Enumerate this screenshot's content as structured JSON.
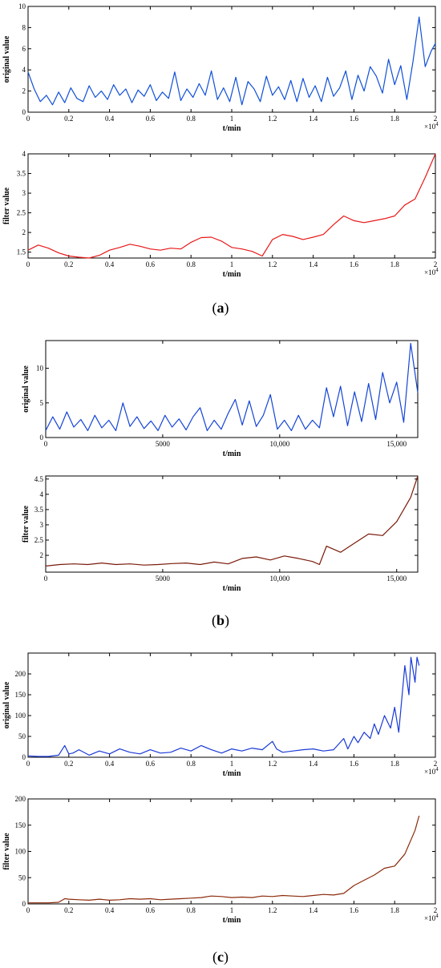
{
  "figure_captions": [
    {
      "open": "(",
      "letter": "a",
      "close": ")"
    },
    {
      "open": "(",
      "letter": "b",
      "close": ")"
    },
    {
      "open": "(",
      "letter": "c",
      "close": ")"
    }
  ],
  "chart_data": [
    {
      "type": "line",
      "panel": "a",
      "color": "#1050d8",
      "xlabel": "t/min",
      "ylabel": "original value",
      "xlim": [
        0,
        2
      ],
      "ylim": [
        0,
        10
      ],
      "xticks": [
        "0",
        "0.2",
        "0.4",
        "0.6",
        "0.8",
        "1",
        "1.2",
        "1.4",
        "1.6",
        "1.8",
        "2"
      ],
      "yticks": [
        "0",
        "2",
        "4",
        "6",
        "8",
        "10"
      ],
      "x_multiplier": {
        "base": "×10",
        "exp": "4"
      },
      "series": [
        {
          "x": [
            0,
            0.03,
            0.06,
            0.09,
            0.12,
            0.15,
            0.18,
            0.21,
            0.24,
            0.27,
            0.3,
            0.33,
            0.36,
            0.39,
            0.42,
            0.45,
            0.48,
            0.51,
            0.54,
            0.57,
            0.6,
            0.63,
            0.66,
            0.69,
            0.72,
            0.75,
            0.78,
            0.81,
            0.84,
            0.87,
            0.9,
            0.93,
            0.96,
            0.99,
            1.02,
            1.05,
            1.08,
            1.11,
            1.14,
            1.17,
            1.2,
            1.23,
            1.26,
            1.29,
            1.32,
            1.35,
            1.38,
            1.41,
            1.44,
            1.47,
            1.5,
            1.53,
            1.56,
            1.59,
            1.62,
            1.65,
            1.68,
            1.71,
            1.74,
            1.77,
            1.8,
            1.83,
            1.86,
            1.89,
            1.92,
            1.95,
            1.98,
            2.0
          ],
          "y": [
            3.8,
            2.2,
            1.0,
            1.6,
            0.7,
            1.9,
            0.9,
            2.3,
            1.3,
            1.0,
            2.5,
            1.4,
            2.0,
            1.2,
            2.6,
            1.6,
            2.2,
            0.9,
            2.1,
            1.5,
            2.6,
            1.1,
            1.9,
            1.3,
            3.8,
            1.1,
            2.2,
            1.4,
            2.7,
            1.6,
            3.9,
            1.2,
            2.3,
            1.0,
            3.3,
            0.7,
            2.9,
            2.2,
            1.0,
            3.4,
            1.6,
            2.4,
            1.2,
            3.0,
            1.0,
            3.2,
            1.4,
            2.5,
            1.0,
            3.3,
            1.5,
            2.3,
            3.9,
            1.2,
            3.5,
            2.0,
            4.3,
            3.4,
            1.8,
            5.0,
            2.6,
            4.4,
            1.2,
            4.8,
            9.0,
            4.3,
            5.8,
            6.5
          ]
        }
      ]
    },
    {
      "type": "line",
      "panel": "a",
      "color": "#e81818",
      "xlabel": "t/min",
      "ylabel": "filter value",
      "xlim": [
        0,
        2
      ],
      "ylim": [
        1.35,
        4
      ],
      "xticks": [
        "0",
        "0.2",
        "0.4",
        "0.6",
        "0.8",
        "1",
        "1.2",
        "1.4",
        "1.6",
        "1.8",
        "2"
      ],
      "yticks": [
        "1.5",
        "2",
        "2.5",
        "3",
        "3.5",
        "4"
      ],
      "x_multiplier": {
        "base": "×10",
        "exp": "4"
      },
      "series": [
        {
          "x": [
            0,
            0.05,
            0.1,
            0.15,
            0.2,
            0.25,
            0.3,
            0.35,
            0.4,
            0.45,
            0.5,
            0.55,
            0.6,
            0.65,
            0.7,
            0.75,
            0.8,
            0.85,
            0.9,
            0.95,
            1.0,
            1.05,
            1.1,
            1.15,
            1.2,
            1.25,
            1.3,
            1.35,
            1.4,
            1.45,
            1.5,
            1.55,
            1.6,
            1.65,
            1.7,
            1.75,
            1.8,
            1.85,
            1.9,
            1.95,
            2.0
          ],
          "y": [
            1.55,
            1.68,
            1.6,
            1.48,
            1.4,
            1.37,
            1.35,
            1.42,
            1.55,
            1.62,
            1.7,
            1.65,
            1.58,
            1.55,
            1.6,
            1.58,
            1.75,
            1.87,
            1.88,
            1.78,
            1.62,
            1.58,
            1.52,
            1.4,
            1.82,
            1.95,
            1.9,
            1.82,
            1.88,
            1.95,
            2.2,
            2.42,
            2.3,
            2.25,
            2.3,
            2.35,
            2.42,
            2.7,
            2.85,
            3.4,
            4.0
          ]
        }
      ]
    },
    {
      "type": "line",
      "panel": "b",
      "color": "#1545d6",
      "xlabel": "t/min",
      "ylabel": "original value",
      "xlim": [
        0,
        15900
      ],
      "ylim": [
        0,
        14
      ],
      "xticks": [
        {
          "v": 0,
          "label": "0"
        },
        {
          "v": 5000,
          "label": "5000"
        },
        {
          "v": 10000,
          "label": "10,000"
        },
        {
          "v": 15000,
          "label": "15,000"
        }
      ],
      "yticks": [
        {
          "v": 0,
          "label": "0"
        },
        {
          "v": 5,
          "label": "5"
        },
        {
          "v": 10,
          "label": "10"
        }
      ],
      "series": [
        {
          "x": [
            0,
            300,
            600,
            900,
            1200,
            1500,
            1800,
            2100,
            2400,
            2700,
            3000,
            3300,
            3600,
            3900,
            4200,
            4500,
            4800,
            5100,
            5400,
            5700,
            6000,
            6300,
            6600,
            6900,
            7200,
            7500,
            7800,
            8100,
            8400,
            8700,
            9000,
            9300,
            9600,
            9900,
            10200,
            10500,
            10800,
            11100,
            11400,
            11700,
            12000,
            12300,
            12600,
            12900,
            13200,
            13500,
            13800,
            14100,
            14400,
            14700,
            15000,
            15300,
            15600,
            15900
          ],
          "y": [
            1.0,
            3.0,
            1.2,
            3.7,
            1.5,
            2.6,
            1.0,
            3.2,
            1.4,
            2.5,
            1.0,
            5.0,
            1.6,
            3.0,
            1.3,
            2.4,
            1.0,
            3.2,
            1.5,
            2.7,
            1.1,
            3.0,
            4.3,
            1.0,
            2.5,
            1.2,
            3.5,
            5.5,
            1.8,
            5.3,
            1.6,
            3.2,
            6.2,
            1.2,
            2.5,
            1.0,
            3.2,
            1.2,
            2.5,
            1.4,
            7.2,
            3.0,
            7.4,
            1.7,
            6.6,
            2.3,
            7.8,
            2.6,
            9.4,
            5.0,
            8.0,
            2.2,
            13.6,
            6.5
          ]
        }
      ]
    },
    {
      "type": "line",
      "panel": "b",
      "color": "#7a1a0a",
      "xlabel": "t/min",
      "ylabel": "filter value",
      "xlim": [
        0,
        15900
      ],
      "ylim": [
        1.45,
        4.6
      ],
      "xticks": [
        {
          "v": 0,
          "label": "0"
        },
        {
          "v": 5000,
          "label": "5000"
        },
        {
          "v": 10000,
          "label": "10,000"
        },
        {
          "v": 15000,
          "label": "15,000"
        }
      ],
      "yticks": [
        {
          "v": 2,
          "label": "2"
        },
        {
          "v": 2.5,
          "label": "2.5"
        },
        {
          "v": 3,
          "label": "3"
        },
        {
          "v": 3.5,
          "label": "3.5"
        },
        {
          "v": 4,
          "label": "4"
        },
        {
          "v": 4.5,
          "label": "4.5"
        }
      ],
      "series": [
        {
          "x": [
            0,
            600,
            1200,
            1800,
            2400,
            3000,
            3600,
            4200,
            4800,
            5400,
            6000,
            6600,
            7200,
            7800,
            8400,
            9000,
            9600,
            10200,
            10800,
            11400,
            11700,
            12000,
            12600,
            13200,
            13800,
            14400,
            15000,
            15600,
            15900
          ],
          "y": [
            1.65,
            1.7,
            1.72,
            1.7,
            1.75,
            1.7,
            1.72,
            1.68,
            1.7,
            1.73,
            1.75,
            1.7,
            1.78,
            1.72,
            1.9,
            1.95,
            1.85,
            1.98,
            1.9,
            1.8,
            1.7,
            2.3,
            2.1,
            2.4,
            2.7,
            2.65,
            3.1,
            3.9,
            4.6
          ]
        }
      ]
    },
    {
      "type": "line",
      "panel": "c",
      "color": "#1a3ad6",
      "xlabel": "t/min",
      "ylabel": "original value",
      "xlim": [
        0,
        2
      ],
      "ylim": [
        0,
        250
      ],
      "xticks": [
        "0",
        "0.2",
        "0.4",
        "0.6",
        "0.8",
        "1",
        "1.2",
        "1.4",
        "1.6",
        "1.8",
        "2"
      ],
      "yticks": [
        "0",
        "50",
        "100",
        "150",
        "200"
      ],
      "x_multiplier": {
        "base": "×10",
        "exp": "4"
      },
      "series": [
        {
          "x": [
            0,
            0.05,
            0.1,
            0.15,
            0.18,
            0.2,
            0.22,
            0.25,
            0.3,
            0.35,
            0.4,
            0.45,
            0.5,
            0.55,
            0.6,
            0.65,
            0.7,
            0.75,
            0.8,
            0.85,
            0.9,
            0.95,
            1.0,
            1.05,
            1.1,
            1.15,
            1.2,
            1.22,
            1.25,
            1.3,
            1.35,
            1.4,
            1.45,
            1.5,
            1.55,
            1.57,
            1.6,
            1.62,
            1.65,
            1.68,
            1.7,
            1.72,
            1.75,
            1.78,
            1.8,
            1.82,
            1.85,
            1.87,
            1.88,
            1.9,
            1.91,
            1.92
          ],
          "y": [
            3,
            2,
            2,
            5,
            28,
            8,
            10,
            18,
            5,
            15,
            8,
            20,
            12,
            8,
            18,
            10,
            12,
            22,
            15,
            28,
            18,
            10,
            20,
            15,
            22,
            18,
            38,
            20,
            12,
            15,
            18,
            20,
            15,
            18,
            45,
            20,
            50,
            35,
            60,
            45,
            80,
            55,
            100,
            70,
            120,
            60,
            220,
            150,
            240,
            180,
            240,
            220
          ]
        }
      ]
    },
    {
      "type": "line",
      "panel": "c",
      "color": "#8b2a0a",
      "xlabel": "t/min",
      "ylabel": "filter value",
      "xlim": [
        0,
        2
      ],
      "ylim": [
        0,
        200
      ],
      "xticks": [
        "0",
        "0.2",
        "0.4",
        "0.6",
        "0.8",
        "1",
        "1.2",
        "1.4",
        "1.6",
        "1.8",
        "2"
      ],
      "yticks": [
        "0",
        "50",
        "100",
        "150",
        "200"
      ],
      "x_multiplier": {
        "base": "×10",
        "exp": "4"
      },
      "series": [
        {
          "x": [
            0,
            0.05,
            0.1,
            0.15,
            0.18,
            0.2,
            0.25,
            0.3,
            0.35,
            0.4,
            0.45,
            0.5,
            0.55,
            0.6,
            0.65,
            0.7,
            0.75,
            0.8,
            0.85,
            0.9,
            0.95,
            1.0,
            1.05,
            1.1,
            1.15,
            1.2,
            1.25,
            1.3,
            1.35,
            1.4,
            1.45,
            1.5,
            1.55,
            1.6,
            1.65,
            1.7,
            1.75,
            1.8,
            1.85,
            1.9,
            1.92
          ],
          "y": [
            2,
            2,
            2,
            3,
            10,
            9,
            8,
            7,
            9,
            7,
            8,
            10,
            9,
            10,
            8,
            9,
            10,
            11,
            12,
            15,
            14,
            12,
            13,
            12,
            15,
            14,
            16,
            15,
            14,
            16,
            18,
            17,
            20,
            35,
            45,
            55,
            68,
            72,
            95,
            140,
            168
          ]
        }
      ]
    }
  ]
}
